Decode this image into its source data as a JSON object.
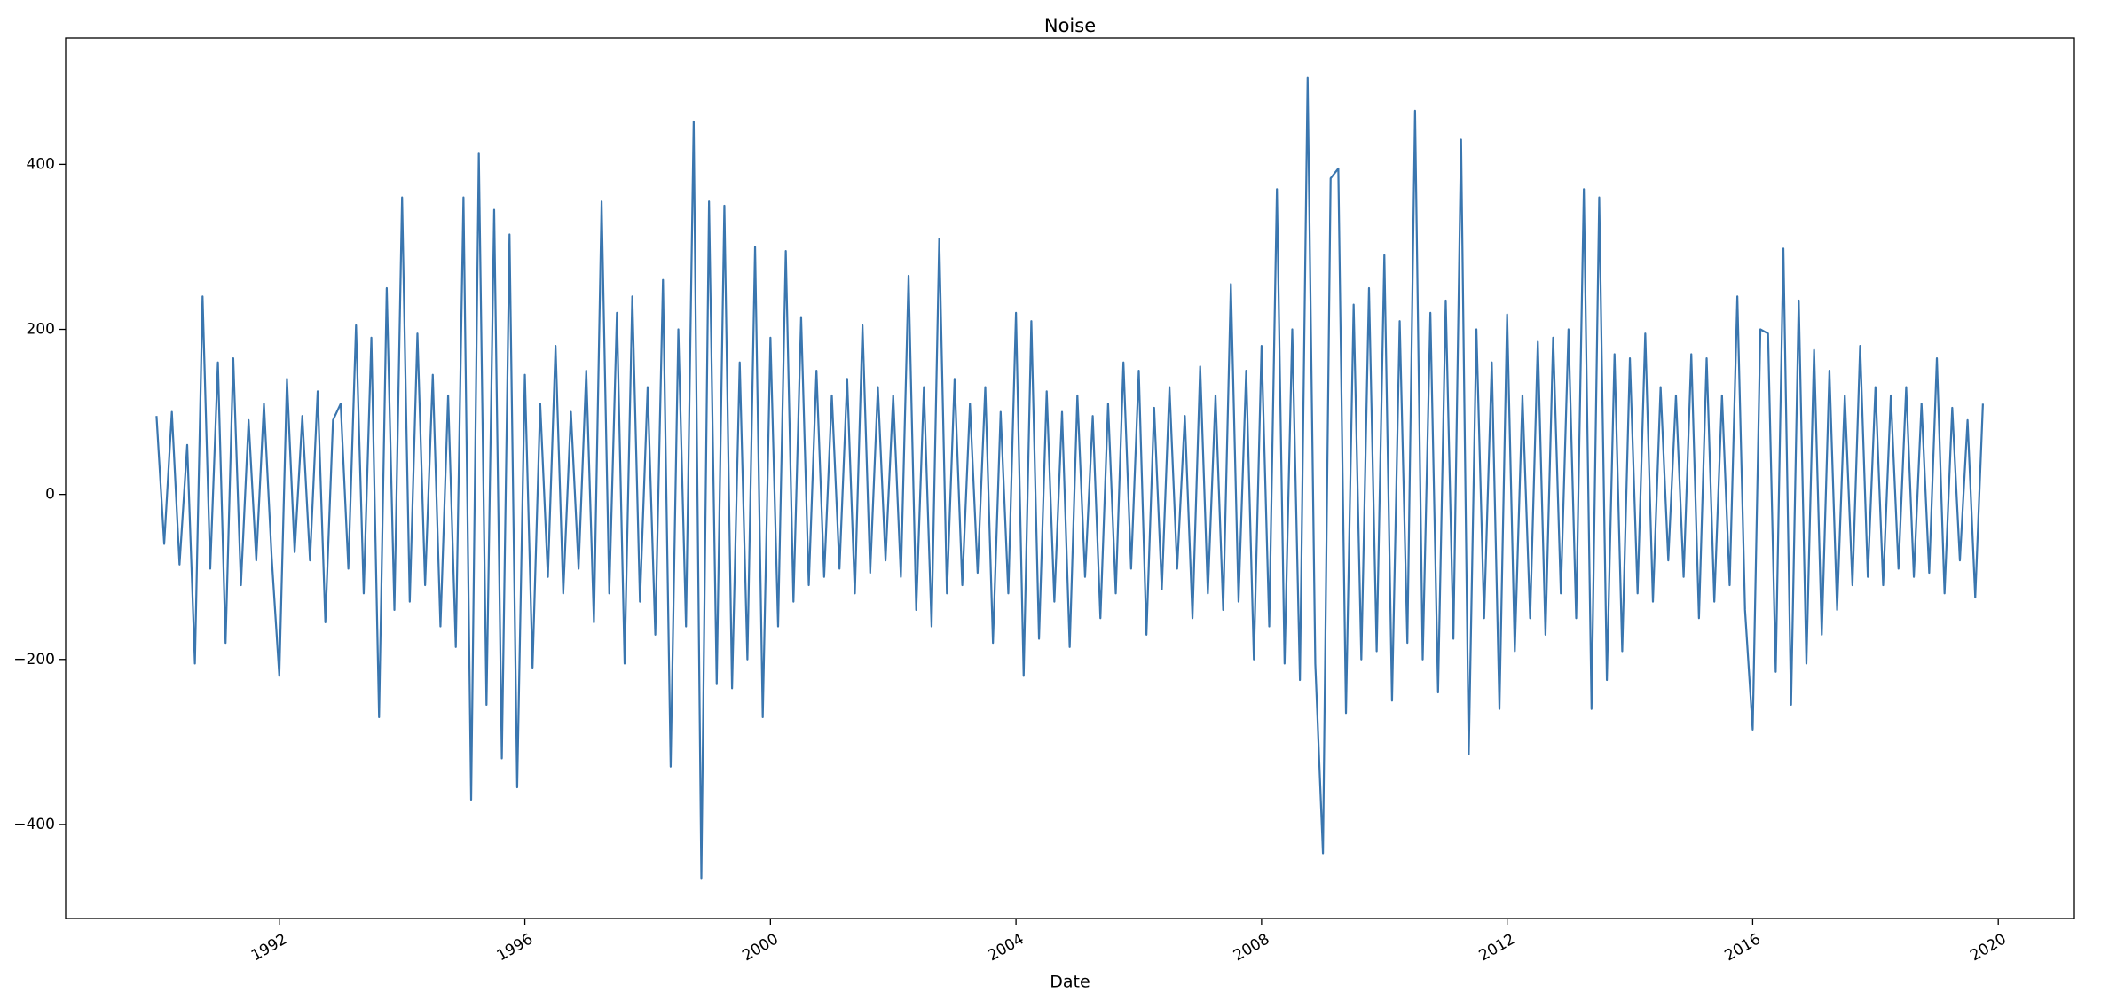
{
  "chart_data": {
    "type": "line",
    "title": "Noise",
    "x_label": "Date",
    "color": "#3a76af",
    "xlim": [
      1988.52,
      2021.24
    ],
    "ylim": [
      -514,
      553
    ],
    "xticks": [
      1992,
      1996,
      2000,
      2004,
      2008,
      2012,
      2016,
      2020
    ],
    "yticks": [
      {
        "value": -400,
        "label": "−400"
      },
      {
        "value": -200,
        "label": "−200"
      },
      0,
      200,
      400
    ],
    "x": [
      1990,
      1990.125,
      1990.25,
      1990.375,
      1990.5,
      1990.625,
      1990.75,
      1990.875,
      1991,
      1991.125,
      1991.25,
      1991.375,
      1991.5,
      1991.625,
      1991.75,
      1991.875,
      1992,
      1992.125,
      1992.25,
      1992.375,
      1992.5,
      1992.625,
      1992.75,
      1992.875,
      1993,
      1993.125,
      1993.25,
      1993.375,
      1993.5,
      1993.625,
      1993.75,
      1993.875,
      1994,
      1994.125,
      1994.25,
      1994.375,
      1994.5,
      1994.625,
      1994.75,
      1994.875,
      1995,
      1995.125,
      1995.25,
      1995.375,
      1995.5,
      1995.625,
      1995.75,
      1995.875,
      1996,
      1996.125,
      1996.25,
      1996.375,
      1996.5,
      1996.625,
      1996.75,
      1996.875,
      1997,
      1997.125,
      1997.25,
      1997.375,
      1997.5,
      1997.625,
      1997.75,
      1997.875,
      1998,
      1998.125,
      1998.25,
      1998.375,
      1998.5,
      1998.625,
      1998.75,
      1998.875,
      1999,
      1999.125,
      1999.25,
      1999.375,
      1999.5,
      1999.625,
      1999.75,
      1999.875,
      2000,
      2000.125,
      2000.25,
      2000.375,
      2000.5,
      2000.625,
      2000.75,
      2000.875,
      2001,
      2001.125,
      2001.25,
      2001.375,
      2001.5,
      2001.625,
      2001.75,
      2001.875,
      2002,
      2002.125,
      2002.25,
      2002.375,
      2002.5,
      2002.625,
      2002.75,
      2002.875,
      2003,
      2003.125,
      2003.25,
      2003.375,
      2003.5,
      2003.625,
      2003.75,
      2003.875,
      2004,
      2004.125,
      2004.25,
      2004.375,
      2004.5,
      2004.625,
      2004.75,
      2004.875,
      2005,
      2005.125,
      2005.25,
      2005.375,
      2005.5,
      2005.625,
      2005.75,
      2005.875,
      2006,
      2006.125,
      2006.25,
      2006.375,
      2006.5,
      2006.625,
      2006.75,
      2006.875,
      2007,
      2007.125,
      2007.25,
      2007.375,
      2007.5,
      2007.625,
      2007.75,
      2007.875,
      2008,
      2008.125,
      2008.25,
      2008.375,
      2008.5,
      2008.625,
      2008.75,
      2008.875,
      2009,
      2009.125,
      2009.25,
      2009.375,
      2009.5,
      2009.625,
      2009.75,
      2009.875,
      2010,
      2010.125,
      2010.25,
      2010.375,
      2010.5,
      2010.625,
      2010.75,
      2010.875,
      2011,
      2011.125,
      2011.25,
      2011.375,
      2011.5,
      2011.625,
      2011.75,
      2011.875,
      2012,
      2012.125,
      2012.25,
      2012.375,
      2012.5,
      2012.625,
      2012.75,
      2012.875,
      2013,
      2013.125,
      2013.25,
      2013.375,
      2013.5,
      2013.625,
      2013.75,
      2013.875,
      2014,
      2014.125,
      2014.25,
      2014.375,
      2014.5,
      2014.625,
      2014.75,
      2014.875,
      2015,
      2015.125,
      2015.25,
      2015.375,
      2015.5,
      2015.625,
      2015.75,
      2015.875,
      2016,
      2016.125,
      2016.25,
      2016.375,
      2016.5,
      2016.625,
      2016.75,
      2016.875,
      2017,
      2017.125,
      2017.25,
      2017.375,
      2017.5,
      2017.625,
      2017.75,
      2017.875,
      2018,
      2018.125,
      2018.25,
      2018.375,
      2018.5,
      2018.625,
      2018.75,
      2018.875,
      2019,
      2019.125,
      2019.25,
      2019.375,
      2019.5,
      2019.625,
      2019.75
    ],
    "values": [
      95,
      -60,
      100,
      -85,
      60,
      -205,
      240,
      -90,
      160,
      -180,
      165,
      -110,
      90,
      -80,
      110,
      -75,
      -220,
      140,
      -70,
      95,
      -80,
      125,
      -155,
      90,
      110,
      -90,
      205,
      -120,
      190,
      -270,
      250,
      -140,
      360,
      -130,
      195,
      -110,
      145,
      -160,
      120,
      -185,
      360,
      -370,
      413,
      -255,
      345,
      -320,
      315,
      -355,
      145,
      -210,
      110,
      -100,
      180,
      -120,
      100,
      -90,
      150,
      -155,
      355,
      -120,
      220,
      -205,
      240,
      -130,
      130,
      -170,
      260,
      -330,
      200,
      -160,
      452,
      -465,
      355,
      -230,
      350,
      -235,
      160,
      -200,
      300,
      -270,
      190,
      -160,
      295,
      -130,
      215,
      -110,
      150,
      -100,
      120,
      -90,
      140,
      -120,
      205,
      -95,
      130,
      -80,
      120,
      -100,
      265,
      -140,
      130,
      -160,
      310,
      -120,
      140,
      -110,
      110,
      -95,
      130,
      -180,
      100,
      -120,
      220,
      -220,
      210,
      -175,
      125,
      -130,
      100,
      -185,
      120,
      -100,
      95,
      -150,
      110,
      -120,
      160,
      -90,
      150,
      -170,
      105,
      -115,
      130,
      -90,
      95,
      -150,
      155,
      -120,
      120,
      -140,
      255,
      -130,
      150,
      -200,
      180,
      -160,
      370,
      -205,
      200,
      -225,
      505,
      -205,
      -435,
      383,
      395,
      -265,
      230,
      -200,
      250,
      -190,
      290,
      -250,
      210,
      -180,
      465,
      -200,
      220,
      -240,
      235,
      -175,
      430,
      -315,
      200,
      -150,
      160,
      -260,
      218,
      -190,
      120,
      -150,
      185,
      -170,
      190,
      -120,
      200,
      -150,
      370,
      -260,
      360,
      -225,
      170,
      -190,
      165,
      -120,
      195,
      -130,
      130,
      -80,
      120,
      -100,
      170,
      -150,
      165,
      -130,
      120,
      -110,
      240,
      -140,
      -285,
      200,
      195,
      -215,
      298,
      -255,
      235,
      -205,
      175,
      -170,
      150,
      -140,
      120,
      -110,
      180,
      -100,
      130,
      -110,
      120,
      -90,
      130,
      -100,
      110,
      -95,
      165,
      -120,
      105,
      -80,
      90,
      -125,
      110
    ]
  }
}
